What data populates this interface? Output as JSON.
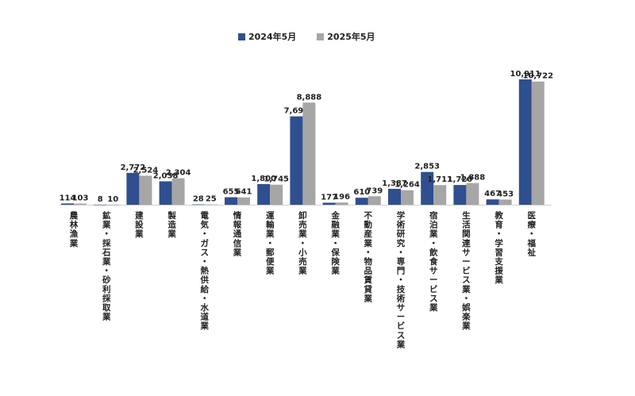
{
  "chart_data": {
    "type": "bar",
    "title": "",
    "xlabel": "",
    "ylabel": "",
    "ylim": [
      0,
      11000
    ],
    "legend_position": "top",
    "grid": false,
    "categories": [
      "農林漁業",
      "鉱業・採石業・砂利採取業",
      "建設業",
      "製造業",
      "電気・ガス・熱供給・水道業",
      "情報通信業",
      "運輸業・郵便業",
      "卸売業・小売業",
      "金融業・保険業",
      "不動産業・物品賃貸業",
      "学術研究・専門・技術サービス業",
      "宿泊業・飲食サービス業",
      "生活関連サービス業・娯楽業",
      "教育・学習支援業",
      "医療・福祉"
    ],
    "series": [
      {
        "name": "2024年5月",
        "color": "#2f4f8f",
        "values": [
          114,
          8,
          2772,
          2038,
          28,
          655,
          1800,
          7694,
          177,
          610,
          1387,
          2853,
          1720,
          467,
          10911
        ],
        "labels": [
          "114",
          "8",
          "2,772",
          "2,038",
          "28",
          "655",
          "1,800",
          "7,694",
          "177",
          "610",
          "1,387",
          "2,853",
          "1,720",
          "467",
          "10,911"
        ]
      },
      {
        "name": "2025年5月",
        "color": "#a6a6a6",
        "values": [
          103,
          10,
          2524,
          2304,
          25,
          641,
          1745,
          8888,
          196,
          739,
          1264,
          1711,
          1888,
          453,
          10722
        ],
        "labels": [
          "103",
          "10",
          "2,524",
          "2,304",
          "25",
          "641",
          "1,745",
          "8,888",
          "196",
          "739",
          "1,264",
          "1,711",
          "1,888",
          "453",
          "10,722"
        ]
      }
    ]
  }
}
